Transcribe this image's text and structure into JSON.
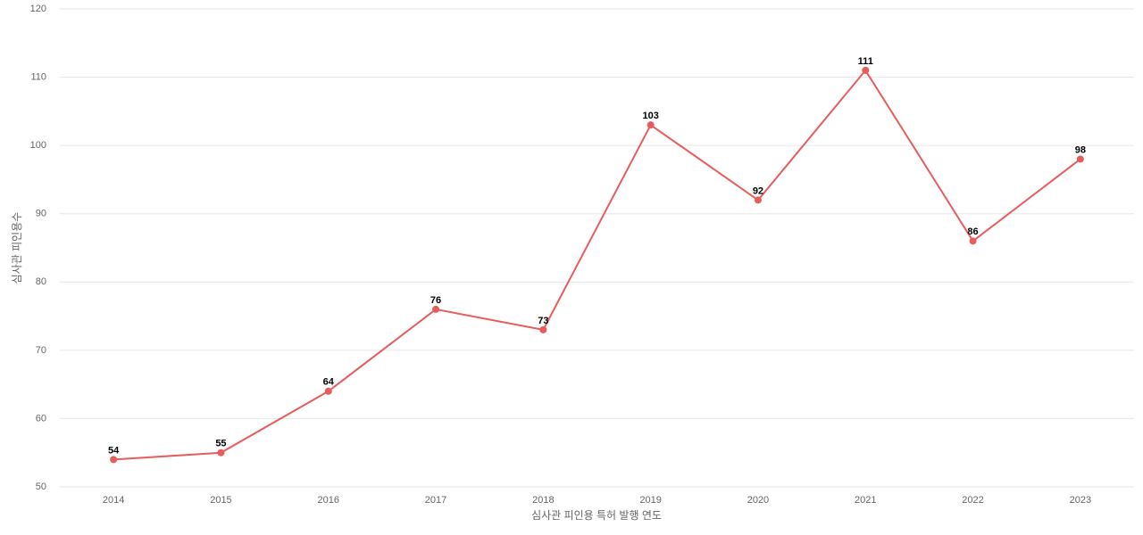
{
  "chart_data": {
    "type": "line",
    "x_label": "심사관 피인용 특허 발행 연도",
    "y_label": "심사관 피인용수",
    "categories": [
      "2014",
      "2015",
      "2016",
      "2017",
      "2018",
      "2019",
      "2020",
      "2021",
      "2022",
      "2023"
    ],
    "values": [
      54,
      55,
      64,
      76,
      73,
      103,
      92,
      111,
      86,
      98
    ],
    "color": "#e85c5c",
    "ylim": [
      50,
      120
    ],
    "yticks": [
      50,
      60,
      70,
      80,
      90,
      100,
      110,
      120
    ],
    "grid": true
  }
}
